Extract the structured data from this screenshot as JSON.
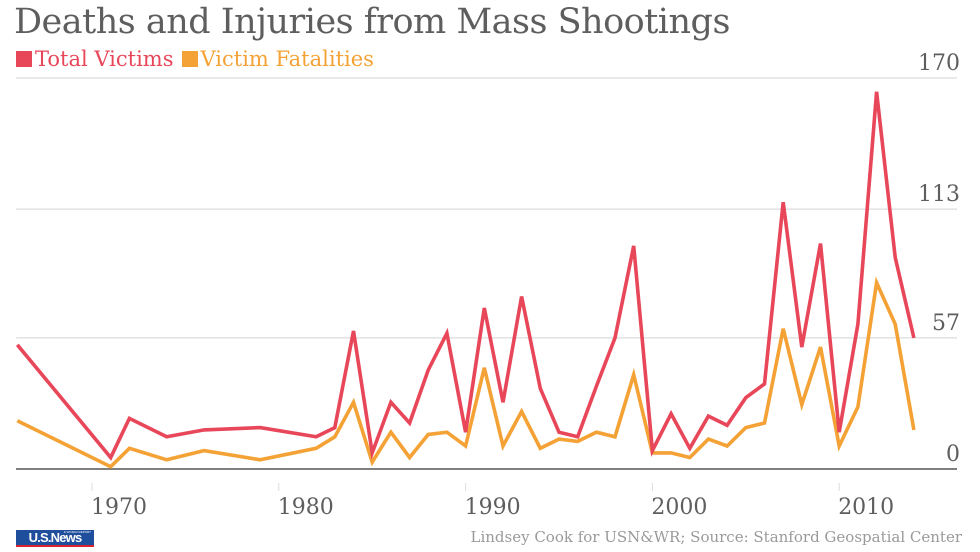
{
  "chart_data": {
    "type": "line",
    "title": "Deaths and Injuries from Mass Shootings",
    "xlabel": "",
    "ylabel": "",
    "x": [
      1966,
      1971,
      1972,
      1974,
      1976,
      1979,
      1982,
      1983,
      1984,
      1985,
      1986,
      1987,
      1988,
      1989,
      1990,
      1991,
      1992,
      1993,
      1994,
      1995,
      1996,
      1997,
      1998,
      1999,
      2000,
      2001,
      2002,
      2003,
      2004,
      2005,
      2006,
      2007,
      2008,
      2009,
      2010,
      2011,
      2012,
      2013,
      2014
    ],
    "series": [
      {
        "name": "Total Victims",
        "color": "#E8475A",
        "values": [
          54,
          5,
          22,
          14,
          17,
          18,
          14,
          18,
          60,
          7,
          29,
          20,
          43,
          59,
          16,
          70,
          29,
          75,
          35,
          16,
          14,
          36,
          57,
          97,
          8,
          24,
          9,
          23,
          19,
          31,
          37,
          116,
          53,
          98,
          16,
          63,
          164,
          92,
          57
        ]
      },
      {
        "name": "Victim Fatalities",
        "color": "#F4A235",
        "values": [
          21,
          1,
          9,
          4,
          8,
          4,
          9,
          14,
          29,
          3,
          16,
          5,
          15,
          16,
          10,
          44,
          10,
          25,
          9,
          13,
          12,
          16,
          14,
          41,
          7,
          7,
          5,
          13,
          10,
          18,
          20,
          61,
          28,
          53,
          10,
          27,
          81,
          63,
          17
        ]
      }
    ],
    "y_ticks": [
      "0",
      "57",
      "113",
      "170"
    ],
    "y_tick_values": [
      0,
      57,
      113,
      170
    ],
    "x_ticks": [
      "1970",
      "1980",
      "1990",
      "2000",
      "2010"
    ],
    "x_tick_values": [
      1970,
      1980,
      1990,
      2000,
      2010
    ],
    "ylim": [
      0,
      170
    ],
    "xlim": [
      1966,
      2016
    ],
    "grid": true,
    "legend": "top-left"
  },
  "legend": {
    "items": [
      {
        "label": "Total Victims",
        "color": "#E8475A"
      },
      {
        "label": "Victim Fatalities",
        "color": "#F4A235"
      }
    ]
  },
  "footer": {
    "credit": "Lindsey Cook for USN&WR; Source: Stanford Geospatial Center",
    "logo_text": "U.S.News",
    "logo_subtext": "& WORLD REPORT"
  }
}
